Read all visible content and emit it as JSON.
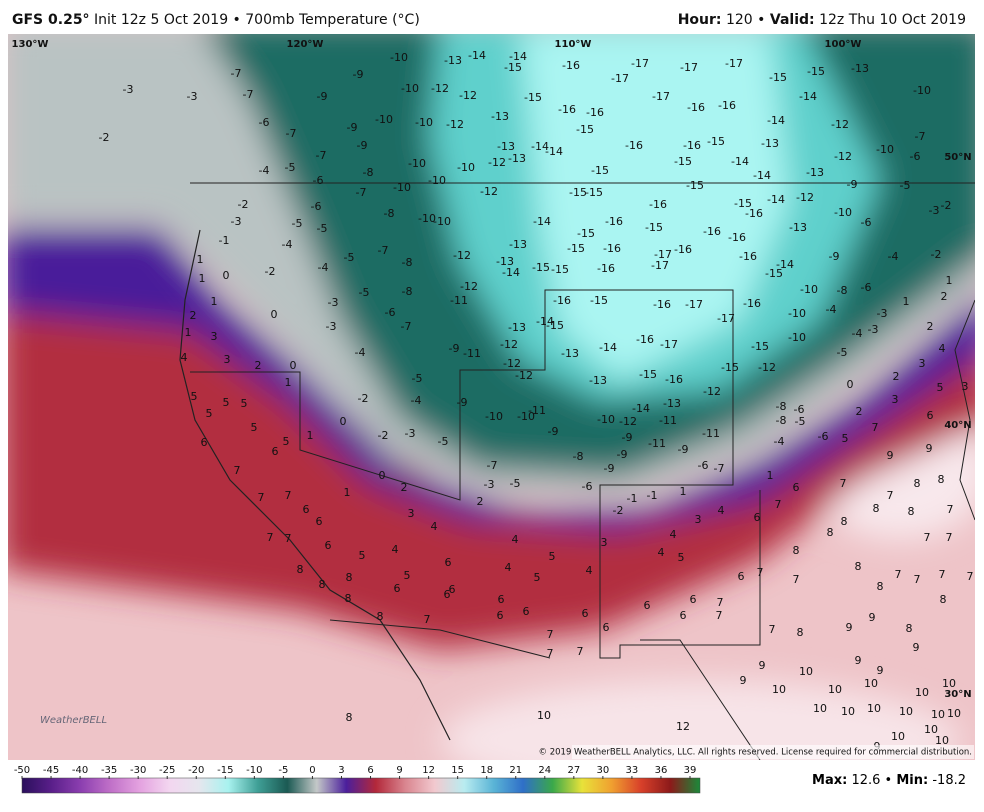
{
  "header": {
    "model": "GFS 0.25°",
    "title": "Init 12z 5 Oct 2019 • 700mb Temperature (°C)",
    "hour_label": "Hour:",
    "hour": 120,
    "separator": "•",
    "valid_label": "Valid:",
    "valid": "12z Thu 10 Oct 2019"
  },
  "map": {
    "lon_labels": [
      "130°W",
      "120°W",
      "110°W",
      "100°W"
    ],
    "lat_labels": [
      "50°N",
      "40°N",
      "30°N"
    ],
    "values": [
      -7,
      -3,
      -3,
      -7,
      -9,
      -9,
      -10,
      -10,
      -12,
      -13,
      -14,
      -14,
      -15,
      -16,
      -17,
      -17,
      -17,
      -17,
      -15,
      -15,
      -13,
      -10,
      -14,
      -17,
      -16,
      -16,
      -16,
      -16,
      -15,
      -12,
      -13,
      -12,
      -10,
      -10,
      -9,
      -6,
      -7,
      -2,
      -7,
      -9,
      -10,
      -10,
      -12,
      -13,
      -13,
      -14,
      -14,
      -15,
      -15,
      -16,
      -15,
      -16,
      -15,
      -14,
      -13,
      -14,
      -12,
      -12,
      -10,
      -6,
      -7,
      -14,
      -13,
      -4,
      -5,
      -6,
      -8,
      -10,
      -10,
      -7,
      -12,
      -15,
      -15,
      -15,
      -15,
      -16,
      -14,
      -12,
      -10,
      -6,
      -9,
      -5,
      -3,
      -2,
      -2,
      -3,
      -5,
      -6,
      -5,
      -8,
      -10,
      -10,
      -14,
      -15,
      -16,
      -15,
      -16,
      -16,
      -16,
      -13,
      -1,
      -4,
      -5,
      -7,
      -8,
      -12,
      -13,
      -15,
      -16,
      -16,
      -17,
      -17,
      -16,
      -15,
      -15,
      -14,
      -13,
      -16,
      -15,
      -14,
      -9,
      -4,
      -2,
      -2,
      -4,
      1,
      0,
      1,
      -5,
      -8,
      -11,
      -12,
      -16,
      -15,
      -16,
      -17,
      -16,
      -10,
      -8,
      -6,
      1,
      2,
      1,
      1,
      0,
      -3,
      -6,
      -7,
      -13,
      -14,
      -15,
      -17,
      -10,
      -4,
      -3,
      2,
      2,
      -3,
      1,
      3,
      -4,
      -9,
      -11,
      -12,
      -13,
      -14,
      -16,
      -17,
      -15,
      -10,
      -4,
      -3,
      4,
      4,
      3,
      2,
      0,
      -12,
      -12,
      -13,
      -15,
      -16,
      -15,
      -12,
      -5,
      3,
      5,
      3,
      1,
      -5,
      2,
      0,
      5,
      5,
      5,
      -2,
      -4,
      -9,
      -12,
      -8,
      -6,
      3,
      6,
      5,
      0,
      -10,
      -10,
      -11,
      -10,
      -12,
      -14,
      -13,
      -11,
      -8,
      -5,
      2,
      5,
      1,
      -2,
      -3,
      -5,
      -9,
      -9,
      -11,
      -11,
      -4,
      5,
      7,
      6,
      5,
      6,
      -8,
      -9,
      -9,
      -6,
      -7,
      -9,
      -6,
      -7,
      1,
      9,
      9,
      7,
      0,
      -3,
      -5,
      -6,
      -1,
      -1,
      1,
      6,
      7,
      8,
      8,
      7,
      7,
      7,
      1,
      2,
      2,
      6,
      6,
      3,
      4,
      -2,
      4,
      6,
      7,
      8,
      8,
      8,
      7,
      3,
      4,
      7,
      7,
      6,
      4,
      4,
      3,
      8,
      7,
      7,
      5,
      6,
      5,
      4,
      5,
      8,
      8,
      4,
      5,
      4,
      6,
      7,
      7,
      8,
      8,
      7,
      7,
      7,
      8,
      5,
      8,
      6,
      6,
      7,
      6,
      8,
      6,
      7,
      8,
      6,
      6,
      6,
      6,
      6,
      7,
      6,
      8,
      7,
      6,
      7,
      7,
      8,
      9,
      9,
      8,
      7,
      7,
      9,
      9,
      9,
      9,
      10,
      9,
      10,
      10,
      10,
      10,
      10,
      10,
      10,
      10,
      10,
      10,
      10,
      8,
      12,
      10,
      10,
      10,
      10,
      9
    ]
  },
  "colorbar": {
    "ticks": [
      -50,
      -45,
      -40,
      -35,
      -30,
      -25,
      -20,
      -15,
      -10,
      -5,
      0,
      3,
      6,
      9,
      12,
      15,
      18,
      21,
      24,
      27,
      30,
      33,
      36,
      39
    ],
    "colors": [
      "#2a0f5c",
      "#5a1f8a",
      "#8c3fb0",
      "#c070c8",
      "#e4a2e0",
      "#f3d6f0",
      "#e6e6ee",
      "#a8f2ef",
      "#3f9f96",
      "#1b5a53",
      "#c4c8c8",
      "#4b1f9c",
      "#b3283a",
      "#d9858f",
      "#f2c9cf",
      "#b9ecf0",
      "#5ab4d6",
      "#2f6fc8",
      "#3aa84a",
      "#e8e23a",
      "#f0a030",
      "#d8402a",
      "#8c1a1a",
      "#1a8a3a"
    ]
  },
  "footer": {
    "logo": "WeatherBELL",
    "copyright": "© 2019 WeatherBELL Analytics, LLC. All rights reserved. License required for commercial distribution.",
    "max_label": "Max:",
    "max": 12.6,
    "separator": "•",
    "min_label": "Min:",
    "min": -18.2
  }
}
